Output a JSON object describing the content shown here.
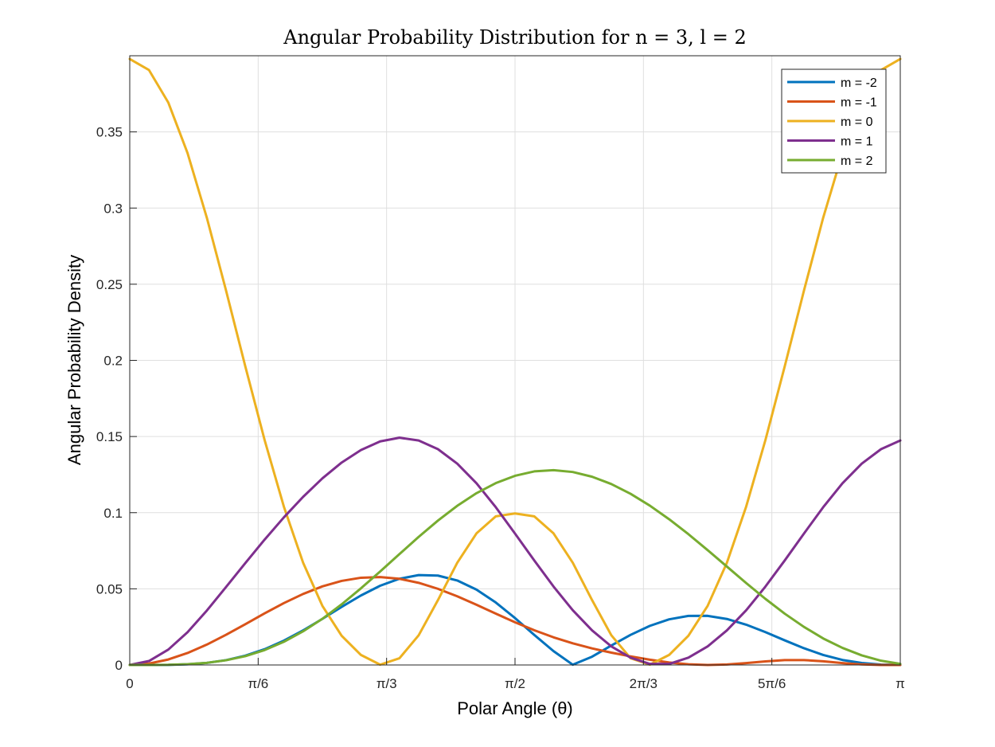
{
  "chart_data": {
    "type": "line",
    "title": "Angular Probability Distribution for n = 3, l = 2",
    "xlabel": "Polar Angle (θ)",
    "ylabel": "Angular Probability Density",
    "xlim": [
      0,
      3.14159265
    ],
    "ylim": [
      0,
      0.4
    ],
    "xtick_values": [
      0,
      0.5235988,
      1.0471976,
      1.5707963,
      2.0943951,
      2.6179939,
      3.14159265
    ],
    "xtick_labels": [
      "0",
      "π/6",
      "π/3",
      "π/2",
      "2π/3",
      "5π/6",
      "π"
    ],
    "ytick_values": [
      0,
      0.05,
      0.1,
      0.15,
      0.2,
      0.25,
      0.3,
      0.35
    ],
    "ytick_labels": [
      "0",
      "0.05",
      "0.1",
      "0.15",
      "0.2",
      "0.25",
      "0.3",
      "0.35"
    ],
    "grid": true,
    "legend_position": "top-right",
    "x": [
      0,
      0.0785,
      0.1571,
      0.2356,
      0.3142,
      0.3927,
      0.4712,
      0.5498,
      0.6283,
      0.7069,
      0.7854,
      0.8639,
      0.9425,
      1.021,
      1.0996,
      1.1781,
      1.2566,
      1.3352,
      1.4137,
      1.4923,
      1.5708,
      1.6493,
      1.7279,
      1.8064,
      1.885,
      1.9635,
      2.042,
      2.1206,
      2.1991,
      2.2777,
      2.3562,
      2.4347,
      2.5133,
      2.5918,
      2.6704,
      2.7489,
      2.8274,
      2.906,
      2.9845,
      3.0631,
      3.1416
    ],
    "series": [
      {
        "name": "m = -2",
        "color": "#0072BD",
        "values": [
          0,
          5.8e-06,
          9.11e-05,
          0.000453,
          0.001372,
          0.003161,
          0.006097,
          0.010353,
          0.015945,
          0.022707,
          0.030277,
          0.038132,
          0.045622,
          0.052028,
          0.05662,
          0.059004,
          0.05869,
          0.055479,
          0.049465,
          0.041026,
          0.030812,
          0.019764,
          0.009082,
          0.000173,
          0.00544,
          0.012785,
          0.019764,
          0.025693,
          0.029972,
          0.032215,
          0.03226,
          0.030209,
          0.026451,
          0.021553,
          0.01618,
          0.010997,
          0.006569,
          0.003291,
          0.001304,
          0.000257,
          0
        ]
      },
      {
        "name": "m = -1",
        "color": "#D95319",
        "values": [
          0,
          0.00092,
          0.00361,
          0.00787,
          0.01338,
          0.01983,
          0.02679,
          0.03387,
          0.04062,
          0.04664,
          0.05159,
          0.0552,
          0.05728,
          0.05774,
          0.05658,
          0.05393,
          0.05,
          0.04508,
          0.03952,
          0.03372,
          0.02805,
          0.0228,
          0.01816,
          0.0142,
          0.01089,
          0.0081,
          0.00565,
          0.00347,
          0.00166,
          0.00045,
          1e-06,
          0.00033,
          0.00124,
          0.00237,
          0.00319,
          0.00323,
          0.00242,
          0.00125,
          0.00036,
          2e-05,
          0
        ]
      },
      {
        "name": "m = 0",
        "color": "#EDB120",
        "values": [
          0.3979,
          0.3906,
          0.3693,
          0.3361,
          0.2937,
          0.2458,
          0.196,
          0.1477,
          0.104,
          0.0671,
          0.0388,
          0.0192,
          0.0066,
          0.0002,
          0.0044,
          0.0195,
          0.0426,
          0.0671,
          0.0864,
          0.0976,
          0.0995,
          0.0976,
          0.0864,
          0.0671,
          0.0426,
          0.0195,
          0.0044,
          0.0002,
          0.0066,
          0.0192,
          0.0388,
          0.0671,
          0.104,
          0.1477,
          0.196,
          0.2458,
          0.2937,
          0.3361,
          0.3693,
          0.3906,
          0.3979
        ]
      },
      {
        "name": "m = 1",
        "color": "#7E2F8E",
        "values": [
          0,
          0.0026,
          0.0101,
          0.0215,
          0.0357,
          0.0512,
          0.0669,
          0.0823,
          0.0969,
          0.1104,
          0.1225,
          0.1329,
          0.1411,
          0.1468,
          0.1492,
          0.1474,
          0.1417,
          0.1322,
          0.1193,
          0.1036,
          0.0863,
          0.0686,
          0.0515,
          0.0359,
          0.0227,
          0.0122,
          0.0048,
          0.0007,
          0.0007,
          0.0048,
          0.0122,
          0.0227,
          0.0359,
          0.0515,
          0.0686,
          0.0863,
          0.1036,
          0.1193,
          0.1322,
          0.1417,
          0.1474
        ]
      },
      {
        "name": "m = 2",
        "color": "#77AC30",
        "values": [
          0,
          0,
          0.0001,
          0.0005,
          0.0014,
          0.0031,
          0.0058,
          0.0098,
          0.0152,
          0.0221,
          0.0303,
          0.0398,
          0.0503,
          0.0614,
          0.0728,
          0.0841,
          0.0948,
          0.1045,
          0.1128,
          0.1194,
          0.1242,
          0.1271,
          0.1279,
          0.1267,
          0.1236,
          0.1188,
          0.1124,
          0.1046,
          0.0957,
          0.0859,
          0.0754,
          0.0646,
          0.0538,
          0.0434,
          0.0337,
          0.025,
          0.0174,
          0.0112,
          0.0063,
          0.0028,
          0.0007
        ]
      }
    ]
  }
}
